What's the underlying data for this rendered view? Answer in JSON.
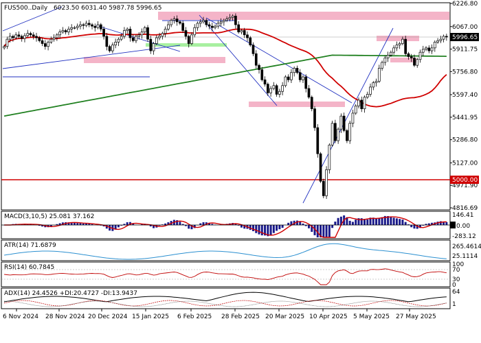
{
  "chart_data": [
    {
      "type": "candlestick",
      "title": "FUS500..Daily",
      "ohlc_text": "6023.50 6031.40 5987.78 5996.65",
      "ylim": [
        4816.69,
        6226.8
      ],
      "y_ticks": [
        "6226.80",
        "6067.00",
        "5911.75",
        "5756.80",
        "5597.40",
        "5441.95",
        "5286.80",
        "5127.00",
        "4971.90",
        "4816.69"
      ],
      "x_ticks": [
        "6 Nov 2024",
        "28 Nov 2024",
        "20 Dec 2024",
        "15 Jan 2025",
        "6 Feb 2025",
        "28 Feb 2025",
        "20 Mar 2025",
        "10 Apr 2025",
        "5 May 2025",
        "27 May 2025"
      ],
      "last_price_label": "5996.65",
      "level_label": "5000.00",
      "level_value": 5000.0,
      "colors": {
        "up": "#000000",
        "down": "#000000",
        "ma_fast": "#d00000",
        "ma_slow": "#208020",
        "level": "#d00000",
        "trend": "#2030c0",
        "zone_pink": "#f4b4c8",
        "zone_green": "#a8f0a0"
      },
      "closes": [
        5930,
        5980,
        6000,
        5990,
        6010,
        6000,
        5985,
        6005,
        6020,
        6010,
        6000,
        5990,
        5970,
        5950,
        5930,
        5960,
        5980,
        5990,
        6010,
        6030,
        6040,
        6030,
        6050,
        6060,
        6060,
        6070,
        6080,
        6075,
        6090,
        6080,
        6070,
        6060,
        6080,
        6050,
        6000,
        5930,
        5900,
        5940,
        5960,
        5980,
        6000,
        6040,
        6050,
        5990,
        5970,
        6000,
        6010,
        6030,
        6060,
        5980,
        5900,
        5950,
        5990,
        6000,
        6020,
        6050,
        6080,
        6110,
        6120,
        6100,
        6090,
        6040,
        6000,
        5950,
        6010,
        6060,
        6090,
        6100,
        6110,
        6080,
        6070,
        6060,
        6070,
        6090,
        6100,
        6110,
        6120,
        6130,
        6140,
        6080,
        6030,
        6040,
        6010,
        5990,
        5940,
        5880,
        5800,
        5770,
        5700,
        5670,
        5610,
        5640,
        5660,
        5600,
        5620,
        5660,
        5720,
        5700,
        5750,
        5780,
        5750,
        5700,
        5720,
        5640,
        5580,
        5500,
        5370,
        5190,
        5000,
        4900,
        5080,
        5250,
        5400,
        5280,
        5360,
        5450,
        5350,
        5280,
        5400,
        5470,
        5520,
        5560,
        5500,
        5580,
        5600,
        5650,
        5680,
        5690,
        5780,
        5820,
        5850,
        5870,
        5890,
        5920,
        5940,
        5950,
        5980,
        5880,
        5860,
        5850,
        5800,
        5840,
        5890,
        5910,
        5920,
        5900,
        5920,
        5960,
        5970,
        5980,
        6000,
        5996.65
      ]
    },
    {
      "type": "line",
      "title": "MACD(3,10,5) 25.081 37.162",
      "y_ticks": [
        "146.41",
        "0.00",
        "-283.12"
      ]
    },
    {
      "type": "line",
      "title": "ATR(14) 71.6879",
      "y_ticks": [
        "265.4614",
        "25.1114"
      ]
    },
    {
      "type": "line",
      "title": "RSI(14) 60.7845",
      "y_ticks": [
        "100",
        "70",
        "30",
        "0"
      ]
    },
    {
      "type": "line",
      "title": "ADX(14) 24.4526 +DI:20.4727 -DI:13.9437",
      "y_ticks": [
        "64",
        "1"
      ]
    }
  ]
}
